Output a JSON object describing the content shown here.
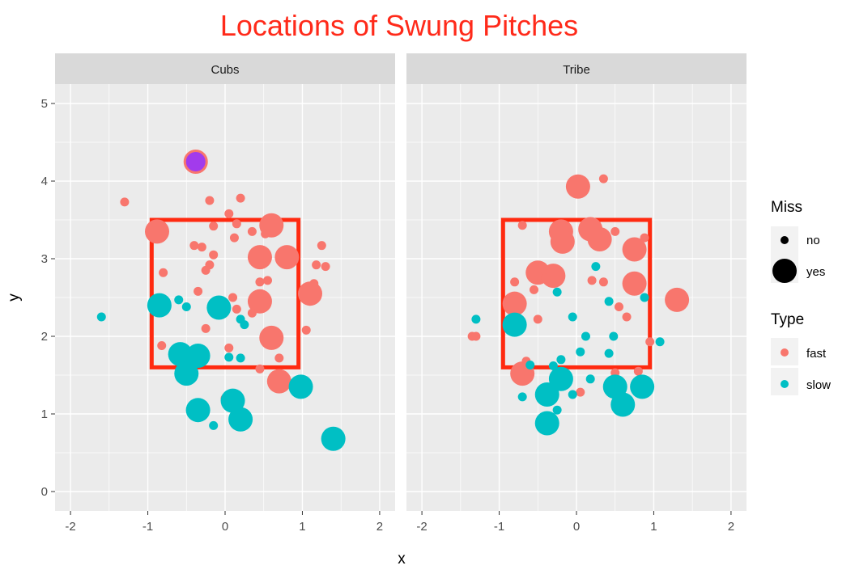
{
  "chart_data": {
    "type": "scatter",
    "title": "Locations of Swung Pitches",
    "xlabel": "x",
    "ylabel": "y",
    "xlim": [
      -2.2,
      2.2
    ],
    "ylim": [
      -0.25,
      5.25
    ],
    "x_ticks": [
      -2,
      -1,
      0,
      1,
      2
    ],
    "y_ticks": [
      0,
      1,
      2,
      3,
      4,
      5
    ],
    "grid": true,
    "strike_zone": {
      "x_min": -0.95,
      "x_max": 0.95,
      "y_min": 1.6,
      "y_max": 3.5,
      "color": "#ff2a10"
    },
    "colors": {
      "fast": "#f8766d",
      "slow": "#00bfc4",
      "highlight_fill": "#a23bec",
      "title": "#ff2a1a"
    },
    "legend": {
      "position": "right",
      "miss_title": "Miss",
      "miss_items": [
        {
          "label": "no"
        },
        {
          "label": "yes"
        }
      ],
      "type_title": "Type",
      "type_items": [
        {
          "label": "fast",
          "key": "fast"
        },
        {
          "label": "slow",
          "key": "slow"
        }
      ]
    },
    "panels": [
      {
        "name": "Cubs",
        "points": [
          {
            "x": -1.3,
            "y": 3.73,
            "type": "fast",
            "miss": "no"
          },
          {
            "x": -0.38,
            "y": 4.25,
            "type": "fast",
            "miss": "yes",
            "highlight": true
          },
          {
            "x": -0.2,
            "y": 3.75,
            "type": "fast",
            "miss": "no"
          },
          {
            "x": 0.2,
            "y": 3.78,
            "type": "fast",
            "miss": "no"
          },
          {
            "x": 0.05,
            "y": 3.58,
            "type": "fast",
            "miss": "no"
          },
          {
            "x": -0.15,
            "y": 3.42,
            "type": "fast",
            "miss": "no"
          },
          {
            "x": 0.15,
            "y": 3.45,
            "type": "fast",
            "miss": "no"
          },
          {
            "x": -0.88,
            "y": 3.35,
            "type": "fast",
            "miss": "yes"
          },
          {
            "x": 0.6,
            "y": 3.43,
            "type": "fast",
            "miss": "yes"
          },
          {
            "x": 0.35,
            "y": 3.35,
            "type": "fast",
            "miss": "no"
          },
          {
            "x": -0.4,
            "y": 3.17,
            "type": "fast",
            "miss": "no"
          },
          {
            "x": -0.3,
            "y": 3.15,
            "type": "fast",
            "miss": "no"
          },
          {
            "x": 0.12,
            "y": 3.27,
            "type": "fast",
            "miss": "no"
          },
          {
            "x": 0.45,
            "y": 3.02,
            "type": "fast",
            "miss": "yes"
          },
          {
            "x": 0.8,
            "y": 3.02,
            "type": "fast",
            "miss": "yes"
          },
          {
            "x": 0.52,
            "y": 3.32,
            "type": "fast",
            "miss": "no"
          },
          {
            "x": 1.25,
            "y": 3.17,
            "type": "fast",
            "miss": "no"
          },
          {
            "x": 1.18,
            "y": 2.92,
            "type": "fast",
            "miss": "no"
          },
          {
            "x": 1.3,
            "y": 2.9,
            "type": "fast",
            "miss": "no"
          },
          {
            "x": -0.15,
            "y": 3.05,
            "type": "fast",
            "miss": "no"
          },
          {
            "x": -0.2,
            "y": 2.92,
            "type": "fast",
            "miss": "no"
          },
          {
            "x": -0.25,
            "y": 2.85,
            "type": "fast",
            "miss": "no"
          },
          {
            "x": -0.8,
            "y": 2.82,
            "type": "fast",
            "miss": "no"
          },
          {
            "x": -0.35,
            "y": 2.58,
            "type": "fast",
            "miss": "no"
          },
          {
            "x": 0.45,
            "y": 2.7,
            "type": "fast",
            "miss": "no"
          },
          {
            "x": 0.55,
            "y": 2.72,
            "type": "fast",
            "miss": "no"
          },
          {
            "x": 1.15,
            "y": 2.68,
            "type": "fast",
            "miss": "no"
          },
          {
            "x": 1.1,
            "y": 2.55,
            "type": "fast",
            "miss": "yes"
          },
          {
            "x": 0.1,
            "y": 2.5,
            "type": "fast",
            "miss": "no"
          },
          {
            "x": 0.45,
            "y": 2.45,
            "type": "fast",
            "miss": "yes"
          },
          {
            "x": 0.15,
            "y": 2.35,
            "type": "fast",
            "miss": "no"
          },
          {
            "x": 0.35,
            "y": 2.3,
            "type": "fast",
            "miss": "no"
          },
          {
            "x": -0.25,
            "y": 2.1,
            "type": "fast",
            "miss": "no"
          },
          {
            "x": 1.05,
            "y": 2.08,
            "type": "fast",
            "miss": "no"
          },
          {
            "x": 0.6,
            "y": 1.98,
            "type": "fast",
            "miss": "yes"
          },
          {
            "x": 0.05,
            "y": 1.85,
            "type": "fast",
            "miss": "no"
          },
          {
            "x": 0.7,
            "y": 1.72,
            "type": "fast",
            "miss": "no"
          },
          {
            "x": 0.45,
            "y": 1.58,
            "type": "fast",
            "miss": "no"
          },
          {
            "x": 0.7,
            "y": 1.42,
            "type": "fast",
            "miss": "yes"
          },
          {
            "x": -0.82,
            "y": 1.88,
            "type": "fast",
            "miss": "no"
          },
          {
            "x": 0.0,
            "y": 1.2,
            "type": "fast",
            "miss": "no"
          },
          {
            "x": -1.6,
            "y": 2.25,
            "type": "slow",
            "miss": "no"
          },
          {
            "x": -0.85,
            "y": 2.4,
            "type": "slow",
            "miss": "yes"
          },
          {
            "x": -0.6,
            "y": 2.47,
            "type": "slow",
            "miss": "no"
          },
          {
            "x": -0.5,
            "y": 2.38,
            "type": "slow",
            "miss": "no"
          },
          {
            "x": -0.08,
            "y": 2.37,
            "type": "slow",
            "miss": "yes"
          },
          {
            "x": 0.2,
            "y": 2.22,
            "type": "slow",
            "miss": "no"
          },
          {
            "x": 0.25,
            "y": 2.15,
            "type": "slow",
            "miss": "no"
          },
          {
            "x": -0.58,
            "y": 1.77,
            "type": "slow",
            "miss": "yes"
          },
          {
            "x": -0.35,
            "y": 1.75,
            "type": "slow",
            "miss": "yes"
          },
          {
            "x": 0.05,
            "y": 1.73,
            "type": "slow",
            "miss": "no"
          },
          {
            "x": 0.2,
            "y": 1.72,
            "type": "slow",
            "miss": "no"
          },
          {
            "x": -0.5,
            "y": 1.52,
            "type": "slow",
            "miss": "yes"
          },
          {
            "x": 0.1,
            "y": 1.17,
            "type": "slow",
            "miss": "yes"
          },
          {
            "x": -0.35,
            "y": 1.05,
            "type": "slow",
            "miss": "yes"
          },
          {
            "x": 0.2,
            "y": 0.93,
            "type": "slow",
            "miss": "yes"
          },
          {
            "x": -0.15,
            "y": 0.85,
            "type": "slow",
            "miss": "no"
          },
          {
            "x": 0.98,
            "y": 1.35,
            "type": "slow",
            "miss": "yes"
          },
          {
            "x": 1.4,
            "y": 0.68,
            "type": "slow",
            "miss": "yes"
          }
        ]
      },
      {
        "name": "Tribe",
        "points": [
          {
            "x": 0.02,
            "y": 3.93,
            "type": "fast",
            "miss": "yes"
          },
          {
            "x": 0.35,
            "y": 4.03,
            "type": "fast",
            "miss": "no"
          },
          {
            "x": -0.2,
            "y": 3.35,
            "type": "fast",
            "miss": "yes"
          },
          {
            "x": 0.18,
            "y": 3.38,
            "type": "fast",
            "miss": "yes"
          },
          {
            "x": 0.3,
            "y": 3.25,
            "type": "fast",
            "miss": "yes"
          },
          {
            "x": -0.18,
            "y": 3.22,
            "type": "fast",
            "miss": "yes"
          },
          {
            "x": -0.7,
            "y": 3.43,
            "type": "fast",
            "miss": "no"
          },
          {
            "x": 0.5,
            "y": 3.35,
            "type": "fast",
            "miss": "no"
          },
          {
            "x": 0.88,
            "y": 3.27,
            "type": "fast",
            "miss": "no"
          },
          {
            "x": 0.75,
            "y": 3.12,
            "type": "fast",
            "miss": "yes"
          },
          {
            "x": -0.5,
            "y": 2.82,
            "type": "fast",
            "miss": "yes"
          },
          {
            "x": -0.3,
            "y": 2.78,
            "type": "fast",
            "miss": "yes"
          },
          {
            "x": -0.4,
            "y": 2.75,
            "type": "fast",
            "miss": "no"
          },
          {
            "x": 0.2,
            "y": 2.72,
            "type": "fast",
            "miss": "no"
          },
          {
            "x": 0.35,
            "y": 2.7,
            "type": "fast",
            "miss": "no"
          },
          {
            "x": 0.75,
            "y": 2.68,
            "type": "fast",
            "miss": "yes"
          },
          {
            "x": -0.8,
            "y": 2.7,
            "type": "fast",
            "miss": "no"
          },
          {
            "x": -0.55,
            "y": 2.6,
            "type": "fast",
            "miss": "no"
          },
          {
            "x": -0.8,
            "y": 2.42,
            "type": "fast",
            "miss": "yes"
          },
          {
            "x": -0.5,
            "y": 2.22,
            "type": "fast",
            "miss": "no"
          },
          {
            "x": 0.55,
            "y": 2.38,
            "type": "fast",
            "miss": "no"
          },
          {
            "x": 0.65,
            "y": 2.25,
            "type": "fast",
            "miss": "no"
          },
          {
            "x": 1.3,
            "y": 2.47,
            "type": "fast",
            "miss": "yes"
          },
          {
            "x": -1.35,
            "y": 2.0,
            "type": "fast",
            "miss": "no"
          },
          {
            "x": -1.3,
            "y": 2.0,
            "type": "fast",
            "miss": "no"
          },
          {
            "x": 0.95,
            "y": 1.93,
            "type": "fast",
            "miss": "no"
          },
          {
            "x": -0.65,
            "y": 1.68,
            "type": "fast",
            "miss": "no"
          },
          {
            "x": -0.7,
            "y": 1.52,
            "type": "fast",
            "miss": "yes"
          },
          {
            "x": 0.05,
            "y": 1.28,
            "type": "fast",
            "miss": "no"
          },
          {
            "x": 0.5,
            "y": 1.53,
            "type": "fast",
            "miss": "no"
          },
          {
            "x": 0.8,
            "y": 1.55,
            "type": "fast",
            "miss": "no"
          },
          {
            "x": -1.3,
            "y": 2.22,
            "type": "slow",
            "miss": "no"
          },
          {
            "x": -0.8,
            "y": 2.15,
            "type": "slow",
            "miss": "yes"
          },
          {
            "x": 0.25,
            "y": 2.9,
            "type": "slow",
            "miss": "no"
          },
          {
            "x": -0.25,
            "y": 2.57,
            "type": "slow",
            "miss": "no"
          },
          {
            "x": 0.42,
            "y": 2.45,
            "type": "slow",
            "miss": "no"
          },
          {
            "x": 0.88,
            "y": 2.5,
            "type": "slow",
            "miss": "no"
          },
          {
            "x": -0.05,
            "y": 2.25,
            "type": "slow",
            "miss": "no"
          },
          {
            "x": 0.12,
            "y": 2.0,
            "type": "slow",
            "miss": "no"
          },
          {
            "x": 0.48,
            "y": 2.0,
            "type": "slow",
            "miss": "no"
          },
          {
            "x": 1.08,
            "y": 1.93,
            "type": "slow",
            "miss": "no"
          },
          {
            "x": 0.05,
            "y": 1.8,
            "type": "slow",
            "miss": "no"
          },
          {
            "x": 0.42,
            "y": 1.78,
            "type": "slow",
            "miss": "no"
          },
          {
            "x": -0.3,
            "y": 1.62,
            "type": "slow",
            "miss": "no"
          },
          {
            "x": -0.2,
            "y": 1.7,
            "type": "slow",
            "miss": "no"
          },
          {
            "x": -0.6,
            "y": 1.63,
            "type": "slow",
            "miss": "no"
          },
          {
            "x": -0.2,
            "y": 1.45,
            "type": "slow",
            "miss": "yes"
          },
          {
            "x": 0.18,
            "y": 1.45,
            "type": "slow",
            "miss": "no"
          },
          {
            "x": -0.38,
            "y": 1.25,
            "type": "slow",
            "miss": "yes"
          },
          {
            "x": -0.7,
            "y": 1.22,
            "type": "slow",
            "miss": "no"
          },
          {
            "x": -0.05,
            "y": 1.25,
            "type": "slow",
            "miss": "no"
          },
          {
            "x": -0.25,
            "y": 1.05,
            "type": "slow",
            "miss": "no"
          },
          {
            "x": -0.38,
            "y": 0.88,
            "type": "slow",
            "miss": "yes"
          },
          {
            "x": 0.5,
            "y": 1.35,
            "type": "slow",
            "miss": "yes"
          },
          {
            "x": 0.85,
            "y": 1.35,
            "type": "slow",
            "miss": "yes"
          },
          {
            "x": 0.6,
            "y": 1.12,
            "type": "slow",
            "miss": "yes"
          }
        ]
      }
    ]
  }
}
